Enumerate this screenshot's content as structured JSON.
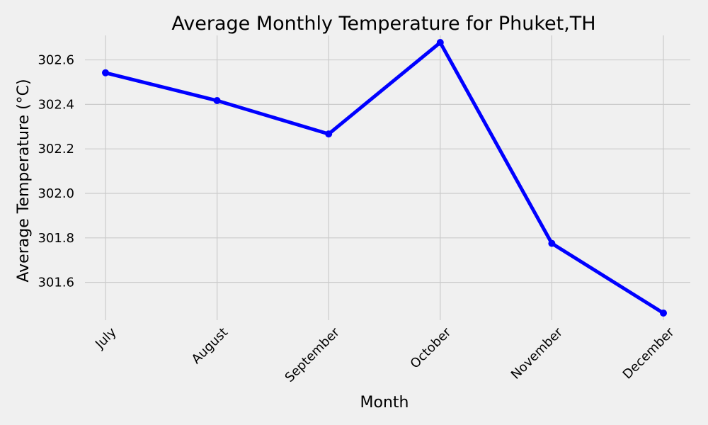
{
  "chart_data": {
    "type": "line",
    "title": "Average Monthly Temperature for Phuket,TH",
    "xlabel": "Month",
    "ylabel": "Average Temperature (°C)",
    "categories": [
      "July",
      "August",
      "September",
      "October",
      "November",
      "December"
    ],
    "series": [
      {
        "values": [
          302.542,
          302.417,
          302.267,
          302.678,
          301.775,
          301.462
        ]
      }
    ],
    "ylim": [
      301.43,
      302.71
    ],
    "yticks": [
      301.6,
      301.8,
      302.0,
      302.2,
      302.4,
      302.6
    ],
    "ytick_labels": [
      "301.6",
      "301.8",
      "302.0",
      "302.2",
      "302.4",
      "302.6"
    ],
    "grid": true,
    "markers": true,
    "colors": {
      "line": "#0000ff",
      "background": "#f0f0f0",
      "grid": "#cbcbcb"
    }
  }
}
